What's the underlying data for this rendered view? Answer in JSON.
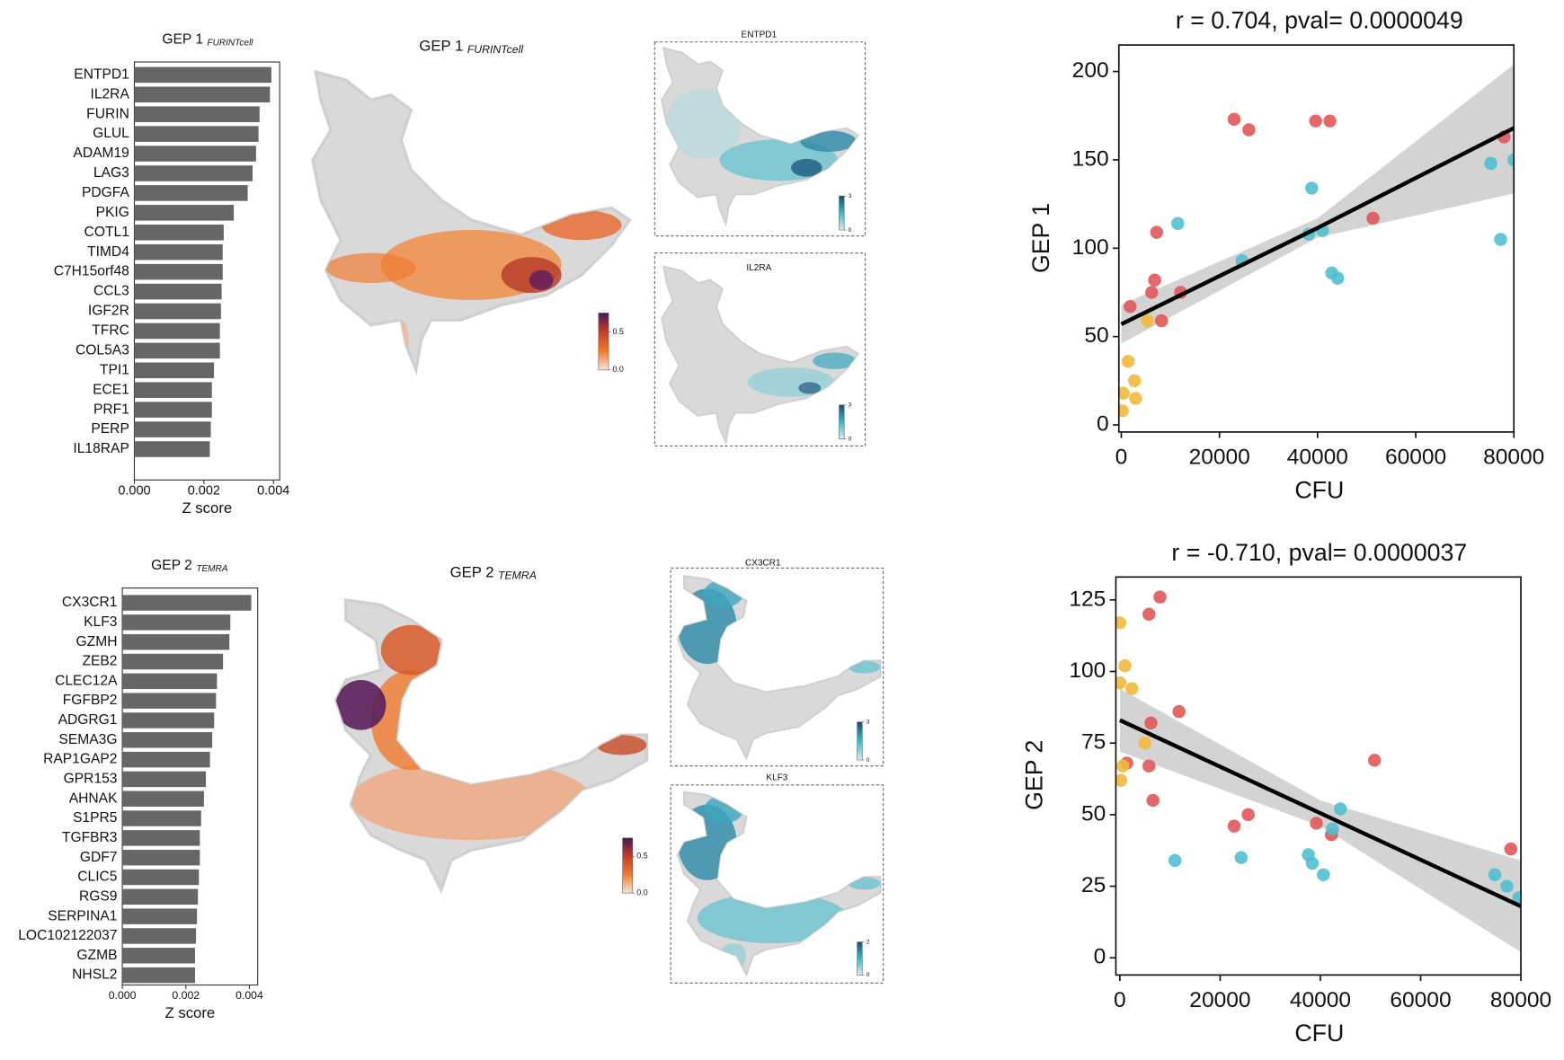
{
  "chart_data": [
    {
      "type": "bar",
      "title": "GEP 1",
      "title_note": "FURINTcell",
      "xlabel": "Z score",
      "color": "#666666",
      "categories": [
        "ENTPD1",
        "IL2RA",
        "FURIN",
        "GLUL",
        "ADAM19",
        "LAG3",
        "PDGFA",
        "PKIG",
        "COTL1",
        "TIMD4",
        "C7H15orf48",
        "CCL3",
        "IGF2R",
        "TFRC",
        "COL5A3",
        "TPI1",
        "ECE1",
        "PRF1",
        "PERP",
        "IL18RAP"
      ],
      "values": [
        0.00394,
        0.0039,
        0.0036,
        0.00357,
        0.0035,
        0.0034,
        0.00326,
        0.00286,
        0.00257,
        0.00254,
        0.00254,
        0.00251,
        0.00249,
        0.00246,
        0.00246,
        0.00229,
        0.00223,
        0.00223,
        0.0022,
        0.00217
      ],
      "xlim": [
        0,
        0.00418
      ],
      "xticks": [
        {
          "value": 0,
          "label": "0.000"
        },
        {
          "value": 0.002,
          "label": "0.002"
        },
        {
          "value": 0.004,
          "label": "0.004"
        }
      ]
    },
    {
      "type": "embedding",
      "title": "GEP 1",
      "title_note": "FURINTcell",
      "colormap": [
        "#f5e6da",
        "#f07a2a",
        "#c4402a",
        "#4a1650"
      ],
      "colorbar_lim": [
        0,
        0.75
      ],
      "colorbar_ticks": [
        {
          "value": 0,
          "label": "0.0"
        },
        0.5
      ]
    },
    {
      "type": "embedding",
      "title": "ENTPD1",
      "colormap": [
        "#dcecef",
        "#3fb6c8",
        "#1e4a6a"
      ],
      "colorbar_lim": [
        0,
        3
      ],
      "colorbar_ticks": [
        0,
        3
      ]
    },
    {
      "type": "embedding",
      "title": "IL2RA",
      "colormap": [
        "#dcecef",
        "#3fb6c8",
        "#1e4a6a"
      ],
      "colorbar_lim": [
        0,
        3
      ],
      "colorbar_ticks": [
        0,
        3
      ]
    },
    {
      "type": "scatter",
      "title": "r = 0.704, pval= 0.0000049",
      "xlabel": "CFU",
      "ylabel": "GEP 1",
      "xlim": [
        -500,
        80000
      ],
      "ylim": [
        -4,
        215
      ],
      "xticks": [
        0,
        20000,
        40000,
        60000,
        80000
      ],
      "yticks": [
        0,
        50,
        100,
        150,
        200
      ],
      "series": [
        {
          "color": "#e15759",
          "x": [
            23000,
            26000,
            39600,
            42500,
            51300,
            7200,
            6800,
            6200,
            12100,
            8200,
            1800,
            78000
          ],
          "values": [
            173,
            167,
            172,
            172,
            117,
            109,
            82,
            75,
            75,
            59,
            67,
            163
          ]
        },
        {
          "color": "#4fbfcf",
          "x": [
            11500,
            38800,
            38200,
            41000,
            42900,
            44100,
            24600,
            75300,
            80000,
            77300
          ],
          "values": [
            114,
            134,
            108,
            110,
            86,
            83,
            93,
            148,
            150,
            105
          ]
        },
        {
          "color": "#f2b93b",
          "x": [
            1400,
            2700,
            2900,
            5300,
            200,
            400
          ],
          "values": [
            36,
            25,
            15,
            59,
            8,
            18
          ]
        }
      ],
      "fit": {
        "color": "#000000",
        "band_color": "#d3d3d3",
        "x": [
          0,
          40000,
          80000
        ],
        "y": [
          57,
          111.5,
          168
        ],
        "lower": [
          46,
          106,
          131
        ],
        "upper": [
          68,
          117,
          204
        ]
      }
    },
    {
      "type": "bar",
      "title": "GEP 2",
      "title_note": "TEMRA",
      "xlabel": "Z score",
      "color": "#666666",
      "categories": [
        "CX3CR1",
        "KLF3",
        "GZMH",
        "ZEB2",
        "CLEC12A",
        "FGFBP2",
        "ADGRG1",
        "SEMA3G",
        "RAP1GAP2",
        "GPR153",
        "AHNAK",
        "S1PR5",
        "TGFBR3",
        "GDF7",
        "CLIC5",
        "RGS9",
        "SERPINA1",
        "LOC102122037",
        "GZMB",
        "NHSL2"
      ],
      "values": [
        0.00406,
        0.0034,
        0.00337,
        0.00317,
        0.00298,
        0.00295,
        0.00289,
        0.00283,
        0.00276,
        0.00263,
        0.00257,
        0.00248,
        0.00244,
        0.00244,
        0.00241,
        0.00238,
        0.00235,
        0.00232,
        0.00229,
        0.00229
      ],
      "xlim": [
        0,
        0.00426
      ],
      "xticks": [
        {
          "value": 0,
          "label": "0.000"
        },
        {
          "value": 0.002,
          "label": "0.002"
        },
        {
          "value": 0.004,
          "label": "0.004"
        }
      ]
    },
    {
      "type": "embedding",
      "title": "GEP 2",
      "title_note": "TEMRA",
      "colormap": [
        "#f5e6da",
        "#f07a2a",
        "#c4402a",
        "#4a1650"
      ],
      "colorbar_lim": [
        0,
        0.75
      ],
      "colorbar_ticks": [
        {
          "value": 0,
          "label": "0.0"
        },
        0.5
      ]
    },
    {
      "type": "embedding",
      "title": "CX3CR1",
      "colormap": [
        "#dcecef",
        "#3fb6c8",
        "#1e4a6a"
      ],
      "colorbar_lim": [
        0,
        3
      ],
      "colorbar_ticks": [
        0,
        3
      ]
    },
    {
      "type": "embedding",
      "title": "KLF3",
      "colormap": [
        "#dcecef",
        "#3fb6c8",
        "#1e4a6a"
      ],
      "colorbar_lim": [
        0,
        2
      ],
      "colorbar_ticks": [
        0,
        2
      ]
    },
    {
      "type": "scatter",
      "title": "r = -0.710, pval= 0.0000037",
      "xlabel": "CFU",
      "ylabel": "GEP 2",
      "xlim": [
        -800,
        80000
      ],
      "ylim": [
        -6,
        133
      ],
      "xticks": [
        0,
        20000,
        40000,
        60000,
        80000
      ],
      "yticks": [
        0,
        25,
        50,
        75,
        100,
        125
      ],
      "series": [
        {
          "color": "#e15759",
          "x": [
            8000,
            5800,
            11800,
            6200,
            5800,
            1400,
            6600,
            22800,
            25600,
            39200,
            42200,
            50800,
            78000
          ],
          "values": [
            126,
            120,
            86,
            82,
            67,
            68,
            55,
            46,
            50,
            47,
            43,
            69,
            38
          ]
        },
        {
          "color": "#4fbfcf",
          "x": [
            11000,
            24200,
            37600,
            38400,
            40600,
            44000,
            42400,
            74800,
            77200,
            79600
          ],
          "values": [
            34,
            35,
            36,
            33,
            29,
            52,
            45,
            29,
            25,
            21
          ]
        },
        {
          "color": "#f2b93b",
          "x": [
            0,
            1000,
            2400,
            0,
            5000,
            600,
            200
          ],
          "values": [
            117,
            102,
            94,
            96,
            75,
            67,
            62
          ]
        }
      ],
      "fit": {
        "color": "#000000",
        "band_color": "#d3d3d3",
        "x": [
          0,
          40000,
          80000
        ],
        "y": [
          83,
          50.5,
          18
        ],
        "lower": [
          72,
          46,
          2
        ],
        "upper": [
          94,
          55,
          34
        ]
      }
    }
  ]
}
